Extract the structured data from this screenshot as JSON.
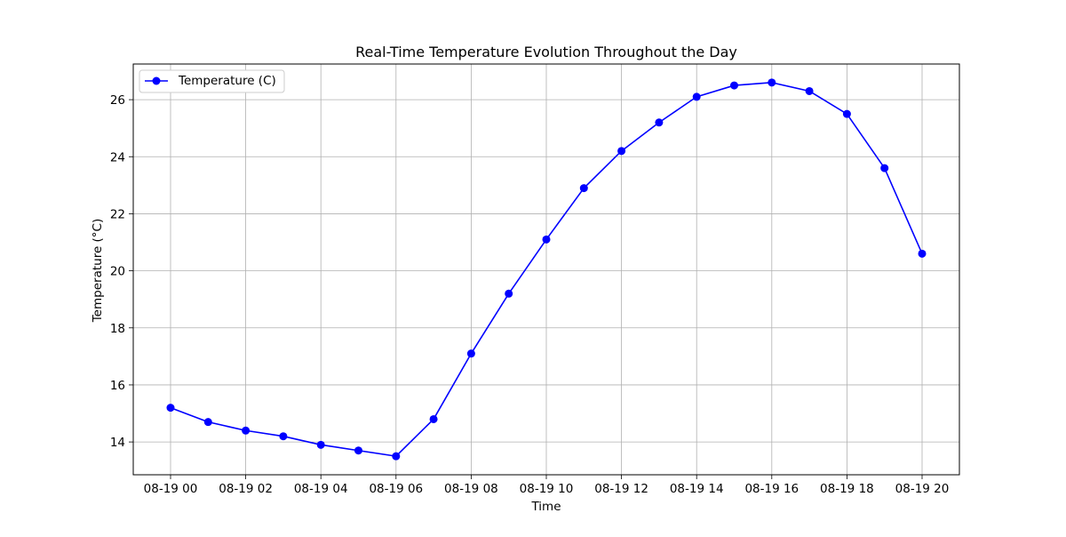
{
  "chart_data": {
    "type": "line",
    "title": "Real-Time Temperature Evolution Throughout the Day",
    "xlabel": "Time",
    "ylabel": "Temperature (°C)",
    "x": [
      "08-19 00",
      "08-19 01",
      "08-19 02",
      "08-19 03",
      "08-19 04",
      "08-19 05",
      "08-19 06",
      "08-19 07",
      "08-19 08",
      "08-19 09",
      "08-19 10",
      "08-19 11",
      "08-19 12",
      "08-19 13",
      "08-19 14",
      "08-19 15",
      "08-19 16",
      "08-19 17",
      "08-19 18",
      "08-19 19",
      "08-19 20"
    ],
    "xticks": [
      "08-19 00",
      "08-19 02",
      "08-19 04",
      "08-19 06",
      "08-19 08",
      "08-19 10",
      "08-19 12",
      "08-19 14",
      "08-19 16",
      "08-19 18",
      "08-19 20"
    ],
    "yticks": [
      14,
      16,
      18,
      20,
      22,
      24,
      26
    ],
    "ylim": [
      12.85,
      27.25
    ],
    "grid": true,
    "legend_position": "top-left",
    "series": [
      {
        "name": "Temperature (C)",
        "color": "#0000ff",
        "marker": "circle",
        "values": [
          15.2,
          14.7,
          14.4,
          14.2,
          13.9,
          13.7,
          13.5,
          14.8,
          17.1,
          19.2,
          21.1,
          22.9,
          24.2,
          25.2,
          26.1,
          26.5,
          26.6,
          26.3,
          25.5,
          23.6,
          20.6
        ]
      }
    ]
  }
}
